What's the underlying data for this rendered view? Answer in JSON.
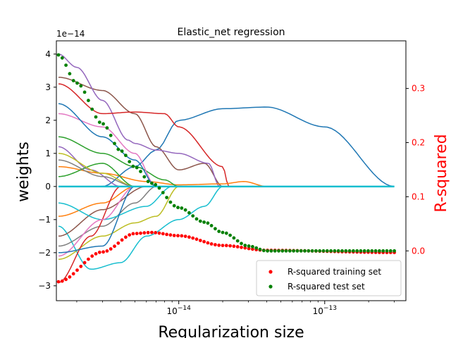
{
  "chart_data": {
    "type": "line",
    "title": "Elastic_net regression",
    "xlabel": "Regularization size",
    "ylabel": "weights",
    "y2label": "R-squared",
    "x_scale": "log",
    "xlim": [
      1.45e-15,
      3.6e-13
    ],
    "x_ticks": [
      {
        "value": 1e-14,
        "label": "10^-14"
      },
      {
        "value": 1e-13,
        "label": "10^-13"
      }
    ],
    "ylim": [
      -3.45,
      4.4
    ],
    "y_offset_label": "1e−14",
    "y_ticks": [
      {
        "value": -3,
        "label": "−3"
      },
      {
        "value": -2,
        "label": "−2"
      },
      {
        "value": -1,
        "label": "−1"
      },
      {
        "value": 0,
        "label": "0"
      },
      {
        "value": 1,
        "label": "1"
      },
      {
        "value": 2,
        "label": "2"
      },
      {
        "value": 3,
        "label": "3"
      },
      {
        "value": 4,
        "label": "4"
      }
    ],
    "y2lim": [
      -0.092,
      0.388
    ],
    "y2_ticks": [
      {
        "value": 0.0,
        "label": "0.0"
      },
      {
        "value": 0.1,
        "label": "0.1"
      },
      {
        "value": 0.2,
        "label": "0.2"
      },
      {
        "value": 0.3,
        "label": "0.3"
      }
    ],
    "y2_color": "#ff0000",
    "legend": {
      "placement": "lower right",
      "entries": [
        {
          "label": "R-squared training set",
          "color": "#ff0000",
          "marker": "circle"
        },
        {
          "label": "R-squared test set",
          "color": "#008000",
          "marker": "circle"
        }
      ]
    },
    "scatter_series": [
      {
        "name": "R-squared training set",
        "color": "#ff0000",
        "axis": "right",
        "x": [
          1.5e-15,
          3e-15,
          5e-15,
          6.5e-15,
          1e-14,
          2e-14,
          4e-14,
          3e-13
        ],
        "y": [
          -0.057,
          -0.002,
          0.032,
          0.034,
          0.028,
          0.01,
          0.001,
          -0.003
        ]
      },
      {
        "name": "R-squared test set",
        "color": "#008000",
        "axis": "left",
        "x": [
          1.5e-15,
          2e-15,
          3e-15,
          4e-15,
          5e-15,
          6.5e-15,
          1e-14,
          1.5e-14,
          2e-14,
          3e-14,
          4e-14,
          3e-13
        ],
        "y": [
          0.362,
          0.31,
          0.235,
          0.185,
          0.155,
          0.125,
          0.08,
          0.053,
          0.034,
          0.009,
          0.0,
          0.0
        ]
      }
    ],
    "weight_paths": [
      {
        "color": "#1f77b4",
        "x": [
          1.5e-15,
          3e-15,
          5e-15,
          7e-15,
          1e-14,
          2e-14,
          4e-14,
          1e-13,
          3e-13
        ],
        "y": [
          0.0,
          0.0,
          0.6,
          1.1,
          2.0,
          2.35,
          2.4,
          1.8,
          0.0
        ]
      },
      {
        "color": "#8c564b",
        "x": [
          1.5e-15,
          3e-15,
          5e-15,
          7e-15,
          1e-14,
          1.5e-14,
          2e-14
        ],
        "y": [
          3.3,
          2.9,
          2.2,
          1.2,
          0.5,
          0.7,
          0.0
        ]
      },
      {
        "color": "#9467bd",
        "x": [
          1.5e-15,
          2e-15,
          3e-15,
          4.5e-15,
          5e-15,
          7e-15,
          1e-14,
          1.6e-14,
          1.9e-14
        ],
        "y": [
          4.0,
          3.6,
          2.6,
          1.4,
          1.3,
          1.1,
          1.0,
          0.7,
          0.0
        ]
      },
      {
        "color": "#d62728",
        "x": [
          1.5e-15,
          3e-15,
          5e-15,
          8e-15,
          1e-14,
          2e-14,
          2.2e-14
        ],
        "y": [
          3.1,
          2.2,
          2.25,
          2.2,
          1.8,
          0.6,
          0.0
        ]
      },
      {
        "color": "#ff7f0e",
        "x": [
          1.5e-15,
          3e-15,
          6e-15,
          1e-14,
          2e-14,
          2.8e-14,
          4e-14
        ],
        "y": [
          0.6,
          0.4,
          0.15,
          0.05,
          0.08,
          0.15,
          0.0
        ]
      },
      {
        "color": "#17becf",
        "x": [
          1.5e-15,
          2.5e-15,
          4e-15,
          6e-15,
          1e-14,
          1.5e-14,
          2e-14
        ],
        "y": [
          -1.2,
          -2.5,
          -2.3,
          -1.5,
          -1.0,
          -0.6,
          0.0
        ]
      },
      {
        "color": "#bcbd22",
        "x": [
          1.5e-15,
          3e-15,
          5e-15,
          7e-15,
          1e-14
        ],
        "y": [
          -2.2,
          -1.5,
          -1.1,
          -0.9,
          0.0
        ]
      },
      {
        "color": "#2ca02c",
        "x": [
          1.5e-15,
          3e-15,
          5e-15,
          8e-15,
          1e-14
        ],
        "y": [
          1.5,
          1.0,
          0.6,
          0.2,
          0.0
        ]
      },
      {
        "color": "#e377c2",
        "x": [
          1.5e-15,
          3e-15,
          5e-15,
          7e-15
        ],
        "y": [
          2.2,
          1.8,
          1.0,
          0.0
        ]
      },
      {
        "color": "#7f7f7f",
        "x": [
          1.5e-15,
          3e-15,
          5e-15,
          7e-15
        ],
        "y": [
          -1.8,
          -1.2,
          -0.5,
          0.0
        ]
      },
      {
        "color": "#1f77b4",
        "x": [
          1.5e-15,
          3e-15,
          5e-15,
          7e-15
        ],
        "y": [
          2.5,
          1.5,
          0.8,
          0.0
        ]
      },
      {
        "color": "#ff7f0e",
        "x": [
          1.5e-15,
          3e-15,
          5e-15
        ],
        "y": [
          -0.9,
          -0.5,
          0.0
        ]
      },
      {
        "color": "#d62728",
        "x": [
          1.5e-15,
          2.5e-15,
          4e-15
        ],
        "y": [
          -2.9,
          -1.5,
          0.0
        ]
      },
      {
        "color": "#9467bd",
        "x": [
          1.5e-15,
          2.5e-15,
          4e-15
        ],
        "y": [
          1.2,
          0.5,
          0.0
        ]
      },
      {
        "color": "#8c564b",
        "x": [
          1.5e-15,
          3e-15,
          6e-15
        ],
        "y": [
          -1.5,
          -0.7,
          0.0
        ]
      },
      {
        "color": "#17becf",
        "x": [
          1.5e-15,
          3e-15,
          6e-15,
          9e-15
        ],
        "y": [
          -0.5,
          -1.0,
          -0.6,
          0.0
        ]
      },
      {
        "color": "#2ca02c",
        "x": [
          1.5e-15,
          3e-15,
          5e-15
        ],
        "y": [
          0.3,
          0.7,
          0.0
        ]
      },
      {
        "color": "#bcbd22",
        "x": [
          1.5e-15,
          3e-15,
          5e-15
        ],
        "y": [
          1.0,
          0.4,
          0.0
        ]
      },
      {
        "color": "#e377c2",
        "x": [
          1.5e-15,
          3e-15,
          5e-15
        ],
        "y": [
          -2.1,
          -1.0,
          0.0
        ]
      },
      {
        "color": "#1f77b4",
        "x": [
          1.5e-15,
          3e-15,
          5e-15
        ],
        "y": [
          -2.0,
          -1.8,
          0.0
        ]
      },
      {
        "color": "#7f7f7f",
        "x": [
          1.5e-15,
          3e-15,
          5e-15
        ],
        "y": [
          0.8,
          0.3,
          0.0
        ]
      }
    ]
  }
}
